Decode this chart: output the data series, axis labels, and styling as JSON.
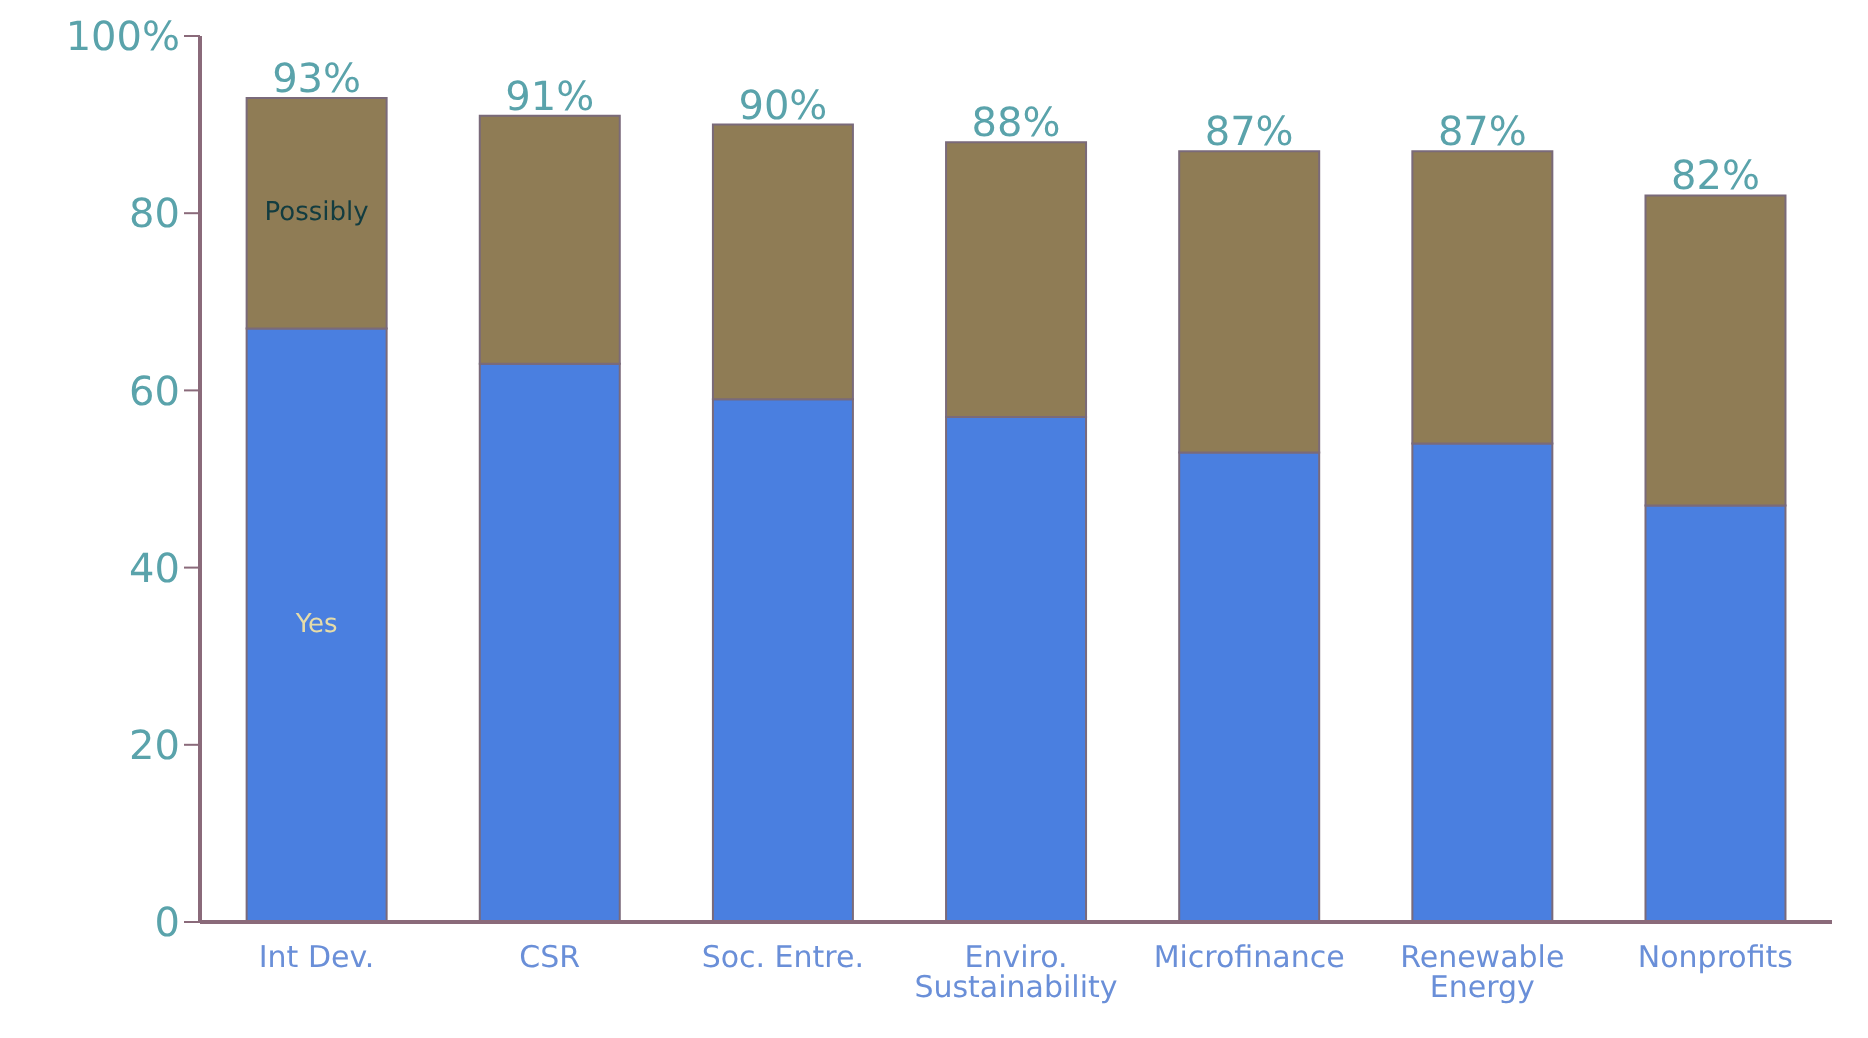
{
  "chart_data": {
    "type": "bar",
    "stacked": true,
    "categories": [
      "Int Dev.",
      "CSR",
      "Soc. Entre.",
      "Enviro. Sustainability",
      "Microfinance",
      "Renewable Energy",
      "Nonprofits"
    ],
    "series": [
      {
        "name": "Yes",
        "color": "#4a7fe0",
        "values": [
          67,
          63,
          59,
          57,
          53,
          54,
          47
        ]
      },
      {
        "name": "Possibly",
        "color": "#8f7c55",
        "values": [
          26,
          28,
          31,
          31,
          34,
          33,
          35
        ]
      }
    ],
    "totals": [
      "93%",
      "91%",
      "90%",
      "88%",
      "87%",
      "87%",
      "82%"
    ],
    "ylim": [
      0,
      100
    ],
    "yticks": [
      0,
      20,
      40,
      60,
      80,
      {
        "value": 100,
        "label": "100%"
      }
    ],
    "grid": false,
    "legend": false
  }
}
